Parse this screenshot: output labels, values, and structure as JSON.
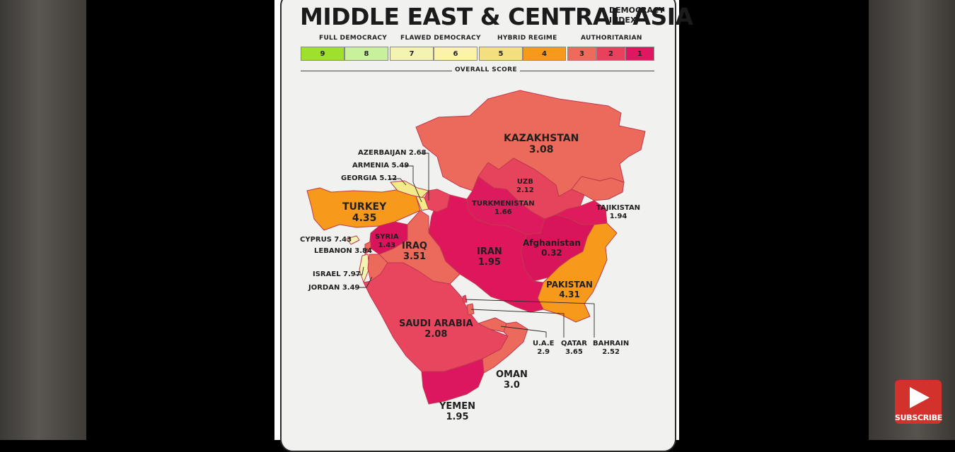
{
  "header": {
    "title": "MIDDLE EAST & CENTRAL ASIA",
    "subtitle_line1": "DEMOCRACY",
    "subtitle_line2": "INDEX"
  },
  "legend": {
    "categories": [
      {
        "label": "FULL DEMOCRACY"
      },
      {
        "label": "FLAWED DEMOCRACY"
      },
      {
        "label": "HYBRID REGIME"
      },
      {
        "label": "AUTHORITARIAN"
      }
    ],
    "scale": [
      {
        "score": "9",
        "color": "#9fe02c"
      },
      {
        "score": "8",
        "color": "#c9f09a"
      },
      {
        "score": "7",
        "color": "#f4f4b2"
      },
      {
        "score": "6",
        "color": "#fbf3a8"
      },
      {
        "score": "5",
        "color": "#f3df80"
      },
      {
        "score": "4",
        "color": "#f79a1b"
      },
      {
        "score": "3",
        "color": "#ee6a5a"
      },
      {
        "score": "2",
        "color": "#e8415e"
      },
      {
        "score": "1",
        "color": "#df1660"
      }
    ],
    "axis_label": "OVERALL SCORE"
  },
  "countries": {
    "kazakhstan": {
      "name": "KAZAKHSTAN",
      "score": "3.08",
      "color": "#ec6a5b"
    },
    "uzbekistan": {
      "name": "UZB",
      "score": "2.12",
      "color": "#e6445c"
    },
    "turkmenistan": {
      "name": "TURKMENISTAN",
      "score": "1.66",
      "color": "#dd1a5d"
    },
    "tajikistan": {
      "name": "TAJIKISTAN",
      "score": "1.94",
      "color": "#df1a5d"
    },
    "kyrgyz": {
      "color": "#ec6a5b"
    },
    "afghanistan": {
      "name": "Afghanistan",
      "score": "0.32",
      "color": "#d8145b"
    },
    "iran": {
      "name": "IRAN",
      "score": "1.95",
      "color": "#de175d"
    },
    "pakistan": {
      "name": "PAKISTAN",
      "score": "4.31",
      "color": "#f79a1b"
    },
    "turkey": {
      "name": "TURKEY",
      "score": "4.35",
      "color": "#f79a1b"
    },
    "syria": {
      "name": "SYRIA",
      "score": "1.43",
      "color": "#d9145c"
    },
    "iraq": {
      "name": "IRAQ",
      "score": "3.51",
      "color": "#ec6a5b"
    },
    "saudi": {
      "name": "SAUDI ARABIA",
      "score": "2.08",
      "color": "#e8455f"
    },
    "oman": {
      "name": "OMAN",
      "score": "3.0",
      "color": "#ec6a5b"
    },
    "yemen": {
      "name": "YEMEN",
      "score": "1.95",
      "color": "#dd1660"
    },
    "uae": {
      "name": "U.A.E",
      "score": "2.9",
      "color": "#ec6a5b"
    },
    "qatar": {
      "name": "QATAR",
      "score": "3.65",
      "color": "#ec6a5b"
    },
    "bahrain": {
      "name": "BAHRAIN",
      "score": "2.52",
      "color": "#e8455f"
    },
    "jordan": {
      "name": "JORDAN",
      "score": "3.49",
      "color": "#ec6a5b"
    },
    "israel": {
      "name": "ISRAEL",
      "score": "7.97",
      "color": "#f4f4b2"
    },
    "lebanon": {
      "name": "LEBANON",
      "score": "3.84",
      "color": "#ec6a5b"
    },
    "cyprus": {
      "name": "CYPRUS",
      "score": "7.43",
      "color": "#f4f4b2"
    },
    "georgia": {
      "name": "GEORGIA",
      "score": "5.12",
      "color": "#f3ea8a"
    },
    "armenia": {
      "name": "ARMENIA",
      "score": "5.49",
      "color": "#f3ea8a"
    },
    "azerbaijan": {
      "name": "AZERBAIJAN",
      "score": "2.68",
      "color": "#e8455f"
    }
  },
  "side_labels": {
    "azerbaijan": "AZERBAIJAN 2.68",
    "armenia": "ARMENIA 5.49",
    "georgia": "GEORGIA 5.12",
    "cyprus": "CYPRUS 7.43",
    "lebanon": "LEBANON 3.84",
    "israel": "ISRAEL 7.97",
    "jordan": "JORDAN 3.49"
  },
  "overlay": {
    "subscribe_label": "SUBSCRIBE"
  }
}
